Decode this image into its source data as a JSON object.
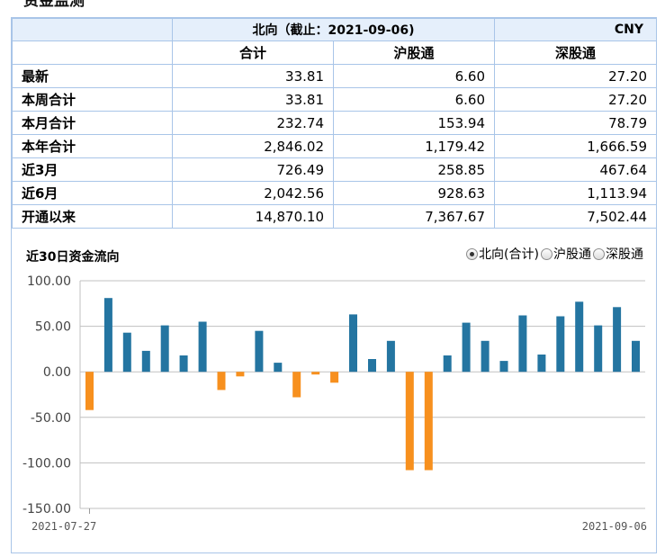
{
  "page": {
    "heading": "资金监测"
  },
  "table": {
    "title": "北向（截止：2021-09-06)",
    "currency": "CNY",
    "columns": [
      "合计",
      "沪股通",
      "深股通"
    ],
    "rows": [
      {
        "label": "最新",
        "values": [
          "33.81",
          "6.60",
          "27.20"
        ]
      },
      {
        "label": "本周合计",
        "values": [
          "33.81",
          "6.60",
          "27.20"
        ]
      },
      {
        "label": "本月合计",
        "values": [
          "232.74",
          "153.94",
          "78.79"
        ]
      },
      {
        "label": "本年合计",
        "values": [
          "2,846.02",
          "1,179.42",
          "1,666.59"
        ]
      },
      {
        "label": "近3月",
        "values": [
          "726.49",
          "258.85",
          "467.64"
        ]
      },
      {
        "label": "近6月",
        "values": [
          "2,042.56",
          "928.63",
          "1,113.94"
        ]
      },
      {
        "label": "开通以来",
        "values": [
          "14,870.10",
          "7,367.67",
          "7,502.44"
        ]
      }
    ]
  },
  "chart_controls": {
    "title": "近30日资金流向",
    "options": [
      {
        "label": "北向(合计)",
        "selected": true
      },
      {
        "label": "沪股通",
        "selected": false
      },
      {
        "label": "深股通",
        "selected": false
      }
    ]
  },
  "chart_data": {
    "type": "bar",
    "title": "近30日资金流向",
    "xlabel": "",
    "ylabel": "",
    "x_start_label": "2021-07-27",
    "x_end_label": "2021-09-06",
    "ylim": [
      -150,
      100
    ],
    "yticks": [
      "100.00",
      "50.00",
      "0.00",
      "-50.00",
      "-100.00",
      "-150.00"
    ],
    "positive_color": "#2475a1",
    "negative_color": "#f7901e",
    "grid": true,
    "values": [
      -42,
      81,
      43,
      23,
      51,
      18,
      55,
      -20,
      -5,
      45,
      10,
      -28,
      -3,
      -12,
      63,
      14,
      34,
      -108,
      -108,
      18,
      54,
      34,
      12,
      62,
      19,
      61,
      77,
      51,
      71,
      34
    ]
  }
}
